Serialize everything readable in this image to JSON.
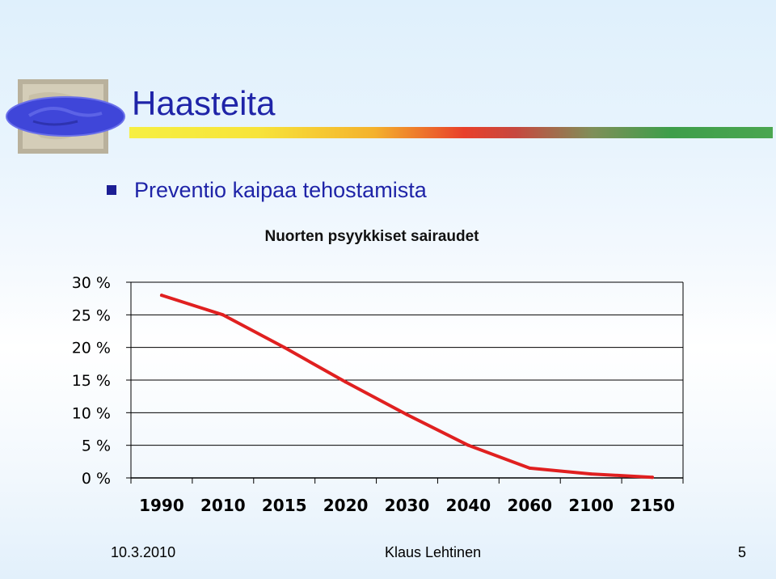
{
  "slide": {
    "title": "Haasteita",
    "bullet": "Preventio kaipaa tehostamista",
    "logo_icon": "handshake-photo-logo-icon"
  },
  "footer": {
    "date": "10.3.2010",
    "author": "Klaus Lehtinen",
    "page": "5"
  },
  "chart_data": {
    "type": "line",
    "title": "Nuorten psyykkiset sairaudet",
    "categories": [
      "1990",
      "2010",
      "2015",
      "2020",
      "2030",
      "2040",
      "2060",
      "2100",
      "2150"
    ],
    "series": [
      {
        "values": [
          28,
          25,
          20,
          14.7,
          9.7,
          5,
          1.5,
          0.6,
          0.1
        ],
        "color": "#e02020"
      }
    ],
    "ylim": [
      0,
      30
    ],
    "yticks": [
      0,
      5,
      10,
      15,
      20,
      25,
      30
    ],
    "ytick_labels": [
      "0 %",
      "5 %",
      "10 %",
      "15 %",
      "20 %",
      "25 %",
      "30 %"
    ],
    "grid": true,
    "legend": "none"
  }
}
